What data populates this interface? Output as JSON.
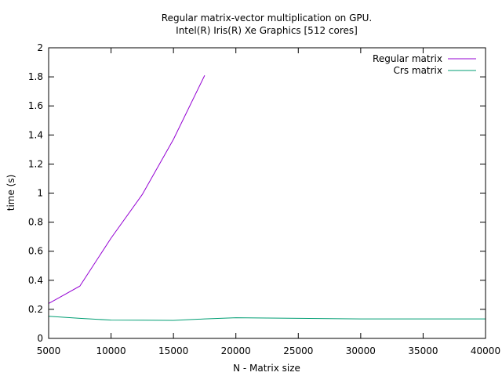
{
  "chart_data": {
    "type": "line",
    "title": "Regular matrix-vector multiplication on GPU.",
    "subtitle": "Intel(R) Iris(R) Xe Graphics [512 cores]",
    "xlabel": "N - Matrix size",
    "ylabel": "time (s)",
    "xlim": [
      5000,
      40000
    ],
    "ylim": [
      0,
      2
    ],
    "xticks": [
      5000,
      10000,
      15000,
      20000,
      25000,
      30000,
      35000,
      40000
    ],
    "yticks": [
      0,
      0.2,
      0.4,
      0.6,
      0.8,
      1,
      1.2,
      1.4,
      1.6,
      1.8,
      2
    ],
    "ytick_labels": [
      "0",
      "0.2",
      "0.4",
      "0.6",
      "0.8",
      "1",
      "1.2",
      "1.4",
      "1.6",
      "1.8",
      "2"
    ],
    "grid": false,
    "legend": "top-right",
    "series": [
      {
        "name": "Regular matrix",
        "color": "#9400d3",
        "x": [
          5000,
          7500,
          10000,
          12500,
          15000,
          17500
        ],
        "y": [
          0.24,
          0.36,
          0.69,
          0.99,
          1.37,
          1.81
        ]
      },
      {
        "name": "Crs matrix",
        "color": "#009e73",
        "x": [
          5000,
          7500,
          10000,
          12500,
          15000,
          17500,
          20000,
          25000,
          30000,
          35000,
          40000
        ],
        "y": [
          0.152,
          0.138,
          0.126,
          0.125,
          0.124,
          0.134,
          0.142,
          0.138,
          0.134,
          0.134,
          0.134
        ]
      }
    ]
  }
}
